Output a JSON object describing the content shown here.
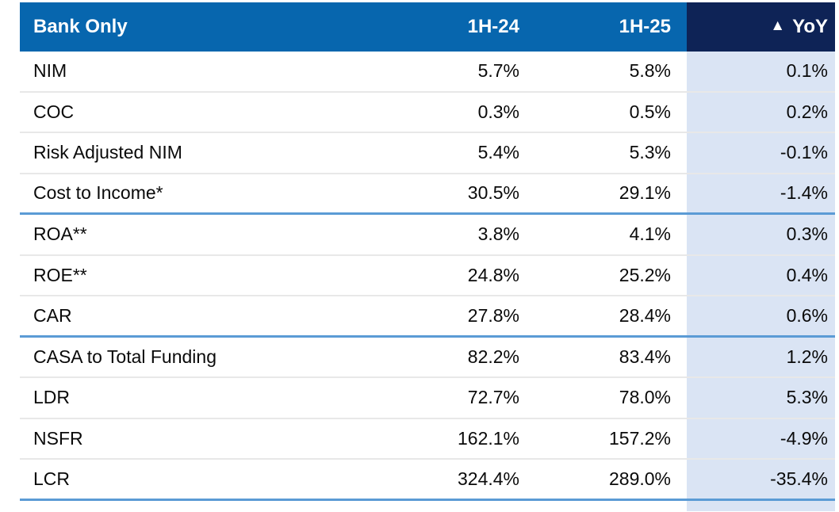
{
  "chart_data": {
    "type": "table",
    "title": "Bank Only",
    "columns": [
      "Bank Only",
      "1H-24",
      "1H-25",
      "▲ YoY"
    ],
    "rows": [
      {
        "metric": "NIM",
        "h1_24": "5.7%",
        "h1_25": "5.8%",
        "yoy_change": "0.1%"
      },
      {
        "metric": "COC",
        "h1_24": "0.3%",
        "h1_25": "0.5%",
        "yoy_change": "0.2%"
      },
      {
        "metric": "Risk Adjusted NIM",
        "h1_24": "5.4%",
        "h1_25": "5.3%",
        "yoy_change": "-0.1%"
      },
      {
        "metric": "Cost to Income*",
        "h1_24": "30.5%",
        "h1_25": "29.1%",
        "yoy_change": "-1.4%"
      },
      {
        "metric": "ROA**",
        "h1_24": "3.8%",
        "h1_25": "4.1%",
        "yoy_change": "0.3%"
      },
      {
        "metric": "ROE**",
        "h1_24": "24.8%",
        "h1_25": "25.2%",
        "yoy_change": "0.4%"
      },
      {
        "metric": "CAR",
        "h1_24": "27.8%",
        "h1_25": "28.4%",
        "yoy_change": "0.6%"
      },
      {
        "metric": "CASA to Total Funding",
        "h1_24": "82.2%",
        "h1_25": "83.4%",
        "yoy_change": "1.2%"
      },
      {
        "metric": "LDR",
        "h1_24": "72.7%",
        "h1_25": "78.0%",
        "yoy_change": "5.3%"
      },
      {
        "metric": "NSFR",
        "h1_24": "162.1%",
        "h1_25": "157.2%",
        "yoy_change": "-4.9%"
      },
      {
        "metric": "LCR",
        "h1_24": "324.4%",
        "h1_25": "289.0%",
        "yoy_change": "-35.4%"
      }
    ],
    "section_dividers_after_rows": [
      3,
      6,
      10
    ],
    "legend_position": "none",
    "grid": "horizontal-dividers-only"
  },
  "header": {
    "title": "Bank Only",
    "col_1h24": "1H-24",
    "col_1h25": "1H-25",
    "yoy_icon": "▲",
    "yoy_label": "YoY"
  },
  "colors": {
    "header_blue": "#0766AE",
    "header_navy": "#0E2356",
    "yoy_column_bg": "#DAE4F4",
    "row_divider": "#E8E8E8",
    "section_divider": "#5B9BD5",
    "header_text": "#FFFFFF",
    "body_text": "#0A0A0A"
  }
}
